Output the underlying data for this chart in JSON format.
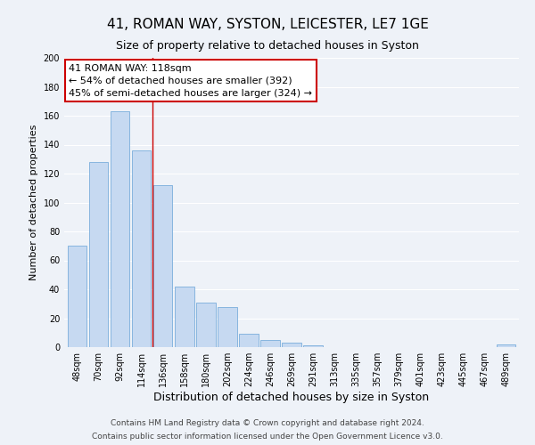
{
  "title": "41, ROMAN WAY, SYSTON, LEICESTER, LE7 1GE",
  "subtitle": "Size of property relative to detached houses in Syston",
  "xlabel": "Distribution of detached houses by size in Syston",
  "ylabel": "Number of detached properties",
  "bar_labels": [
    "48sqm",
    "70sqm",
    "92sqm",
    "114sqm",
    "136sqm",
    "158sqm",
    "180sqm",
    "202sqm",
    "224sqm",
    "246sqm",
    "269sqm",
    "291sqm",
    "313sqm",
    "335sqm",
    "357sqm",
    "379sqm",
    "401sqm",
    "423sqm",
    "445sqm",
    "467sqm",
    "489sqm"
  ],
  "bar_values": [
    70,
    128,
    163,
    136,
    112,
    42,
    31,
    28,
    9,
    5,
    3,
    1,
    0,
    0,
    0,
    0,
    0,
    0,
    0,
    0,
    2
  ],
  "bar_color": "#c6d9f1",
  "bar_edge_color": "#7aaddb",
  "vline_x": 3.5,
  "vline_color": "#cc0000",
  "ylim": [
    0,
    200
  ],
  "yticks": [
    0,
    20,
    40,
    60,
    80,
    100,
    120,
    140,
    160,
    180,
    200
  ],
  "annotation_title": "41 ROMAN WAY: 118sqm",
  "annotation_line1": "← 54% of detached houses are smaller (392)",
  "annotation_line2": "45% of semi-detached houses are larger (324) →",
  "annotation_box_color": "#ffffff",
  "annotation_box_edge": "#cc0000",
  "footer1": "Contains HM Land Registry data © Crown copyright and database right 2024.",
  "footer2": "Contains public sector information licensed under the Open Government Licence v3.0.",
  "title_fontsize": 11,
  "subtitle_fontsize": 9,
  "xlabel_fontsize": 9,
  "ylabel_fontsize": 8,
  "tick_fontsize": 7,
  "annotation_fontsize": 8,
  "footer_fontsize": 6.5,
  "background_color": "#eef2f8"
}
